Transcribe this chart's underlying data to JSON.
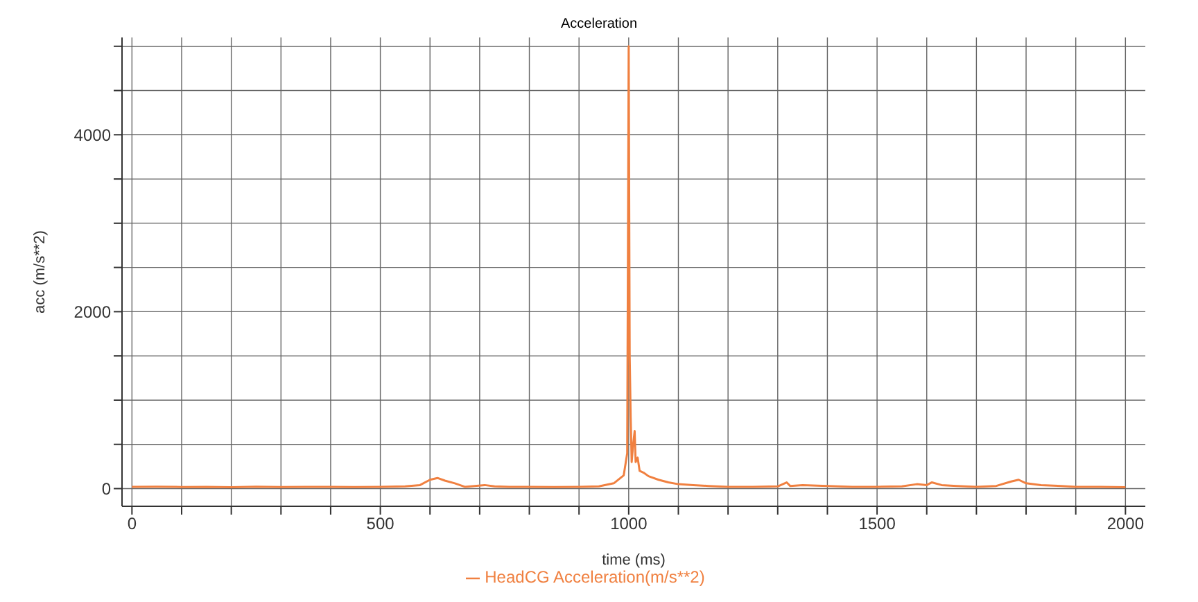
{
  "chart_data": {
    "type": "line",
    "title": "Acceleration",
    "xlabel": "time (ms)",
    "ylabel": "acc (m/s**2)",
    "xlim": [
      -20,
      2040
    ],
    "ylim": [
      -200,
      5100
    ],
    "xticks": [
      0,
      {
        "value": 100,
        "label": null
      },
      {
        "value": 200,
        "label": null
      },
      {
        "value": 300,
        "label": null
      },
      {
        "value": 400,
        "label": null
      },
      500,
      {
        "value": 600,
        "label": null
      },
      {
        "value": 700,
        "label": null
      },
      {
        "value": 800,
        "label": null
      },
      {
        "value": 900,
        "label": null
      },
      1000,
      {
        "value": 1100,
        "label": null
      },
      {
        "value": 1200,
        "label": null
      },
      {
        "value": 1300,
        "label": null
      },
      {
        "value": 1400,
        "label": null
      },
      1500,
      {
        "value": 1600,
        "label": null
      },
      {
        "value": 1700,
        "label": null
      },
      {
        "value": 1800,
        "label": null
      },
      {
        "value": 1900,
        "label": null
      },
      2000
    ],
    "yticks": [
      0,
      {
        "value": 500,
        "label": null
      },
      {
        "value": 1000,
        "label": null
      },
      {
        "value": 1500,
        "label": null
      },
      2000,
      {
        "value": 2500,
        "label": null
      },
      {
        "value": 3000,
        "label": null
      },
      {
        "value": 3500,
        "label": null
      },
      4000,
      {
        "value": 4500,
        "label": null
      },
      {
        "value": 5000,
        "label": null
      }
    ],
    "grid": true,
    "legend": "bottom",
    "marker": "none",
    "line_style": "solid",
    "series": [
      {
        "name": "HeadCG Acceleration(m/s**2)",
        "color": "#f08040",
        "x": [
          0,
          50,
          100,
          150,
          200,
          250,
          300,
          350,
          400,
          450,
          500,
          550,
          580,
          600,
          615,
          630,
          650,
          670,
          690,
          710,
          730,
          760,
          800,
          850,
          900,
          940,
          970,
          990,
          997,
          1000,
          1002,
          1004,
          1006,
          1009,
          1012,
          1014,
          1018,
          1022,
          1030,
          1040,
          1060,
          1080,
          1100,
          1130,
          1160,
          1200,
          1250,
          1300,
          1318,
          1325,
          1350,
          1400,
          1450,
          1500,
          1550,
          1580,
          1600,
          1610,
          1630,
          1660,
          1700,
          1740,
          1770,
          1785,
          1800,
          1830,
          1870,
          1900,
          1950,
          2000
        ],
        "values": [
          20,
          22,
          18,
          20,
          15,
          22,
          18,
          20,
          20,
          18,
          20,
          25,
          40,
          100,
          120,
          90,
          60,
          20,
          30,
          40,
          25,
          20,
          20,
          18,
          20,
          25,
          60,
          150,
          400,
          5000,
          1500,
          800,
          300,
          500,
          650,
          300,
          350,
          200,
          180,
          140,
          100,
          70,
          50,
          40,
          30,
          20,
          20,
          25,
          70,
          30,
          40,
          30,
          20,
          20,
          25,
          50,
          40,
          70,
          40,
          30,
          20,
          30,
          80,
          100,
          60,
          40,
          30,
          20,
          20,
          15
        ]
      }
    ]
  }
}
